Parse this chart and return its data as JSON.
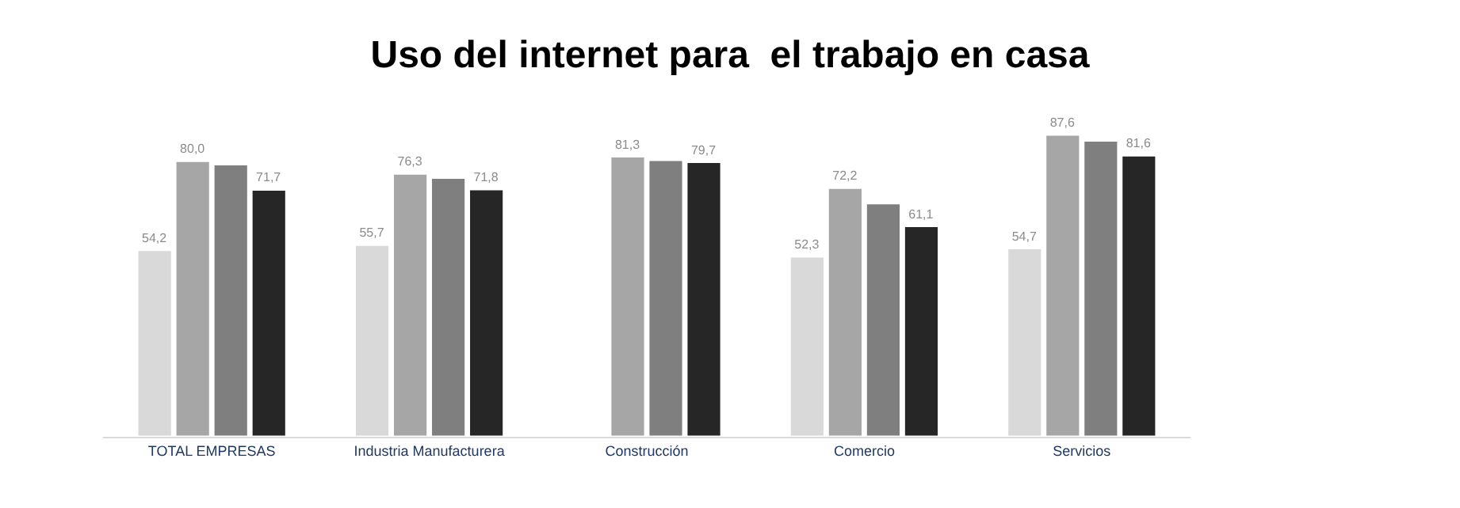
{
  "chart_data": {
    "type": "bar",
    "title": "Uso del internet para  el trabajo en casa",
    "categories": [
      "TOTAL EMPRESAS",
      "Industria Manufacturera",
      "Construcción",
      "Comercio",
      "Servicios"
    ],
    "series": [
      {
        "color": "#d9d9d9",
        "values": [
          54.2,
          55.7,
          null,
          52.3,
          54.7
        ],
        "value_labels": [
          "54,2",
          "55,7",
          null,
          "52,3",
          "54,7"
        ]
      },
      {
        "color": "#a6a6a6",
        "values": [
          80.0,
          76.3,
          81.3,
          72.2,
          87.6
        ],
        "value_labels": [
          "80,0",
          "76,3",
          "81,3",
          "72,2",
          "87,6"
        ]
      },
      {
        "color": "#7f7f7f",
        "values": [
          79.0,
          75.1,
          80.3,
          67.7,
          85.9
        ]
      },
      {
        "color": "#262626",
        "values": [
          71.7,
          71.8,
          79.7,
          61.1,
          81.6
        ],
        "value_labels": [
          "71,7",
          "71,8",
          "79,7",
          "61,1",
          "81,6"
        ]
      }
    ]
  }
}
